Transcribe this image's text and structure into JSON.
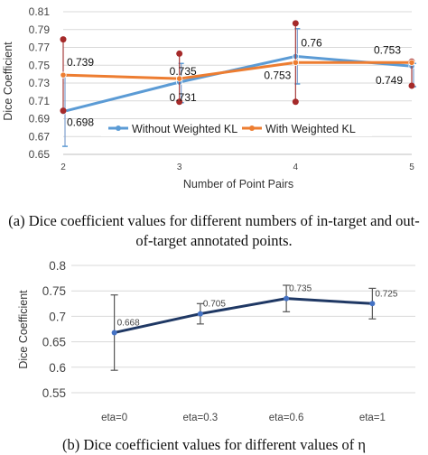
{
  "chart_data": [
    {
      "type": "line",
      "title": "",
      "xlabel": "Number of Point Pairs",
      "ylabel": "Dice Coefficient",
      "categories": [
        "2",
        "3",
        "4",
        "5"
      ],
      "ylim": [
        0.65,
        0.81
      ],
      "yticks": [
        "0.65",
        "0.67",
        "0.69",
        "0.71",
        "0.73",
        "0.75",
        "0.77",
        "0.79",
        "0.81"
      ],
      "grid": true,
      "legend": "bottom-center",
      "series": [
        {
          "name": "Without Weighted KL",
          "color": "#5b9bd5",
          "values": [
            0.698,
            0.731,
            0.76,
            0.749
          ],
          "labels": [
            "0.698",
            "0.731",
            "0.76",
            "0.749"
          ],
          "err_low": [
            0.659,
            0.708,
            0.729,
            0.726
          ],
          "err_high": [
            0.738,
            0.752,
            0.791,
            0.752
          ]
        },
        {
          "name": "With Weighted KL",
          "color": "#ed7d31",
          "values": [
            0.739,
            0.735,
            0.753,
            0.753
          ],
          "labels": [
            "0.739",
            "0.735",
            "0.753",
            "0.753"
          ],
          "err_low": [
            0.699,
            0.709,
            0.709,
            0.727
          ],
          "err_high": [
            0.779,
            0.763,
            0.797,
            0.754
          ]
        }
      ],
      "caption": "(a) Dice coefficient values for different numbers of in-target and out-of-target annotated points."
    },
    {
      "type": "line",
      "title": "",
      "xlabel": "",
      "ylabel": "Dice Coefficient",
      "categories": [
        "eta=0",
        "eta=0.3",
        "eta=0.6",
        "eta=1"
      ],
      "ylim": [
        0.55,
        0.8
      ],
      "yticks": [
        "0.55",
        "0.6",
        "0.65",
        "0.7",
        "0.75",
        "0.8"
      ],
      "grid": true,
      "series": [
        {
          "color": "#1f3864",
          "values": [
            0.668,
            0.705,
            0.735,
            0.725
          ],
          "labels": [
            "0.668",
            "0.705",
            "0.735",
            "0.725"
          ],
          "err_low": [
            0.594,
            0.685,
            0.709,
            0.695
          ],
          "err_high": [
            0.742,
            0.725,
            0.761,
            0.755
          ]
        }
      ],
      "caption": "(b) Dice coefficient values for different values of η"
    }
  ]
}
